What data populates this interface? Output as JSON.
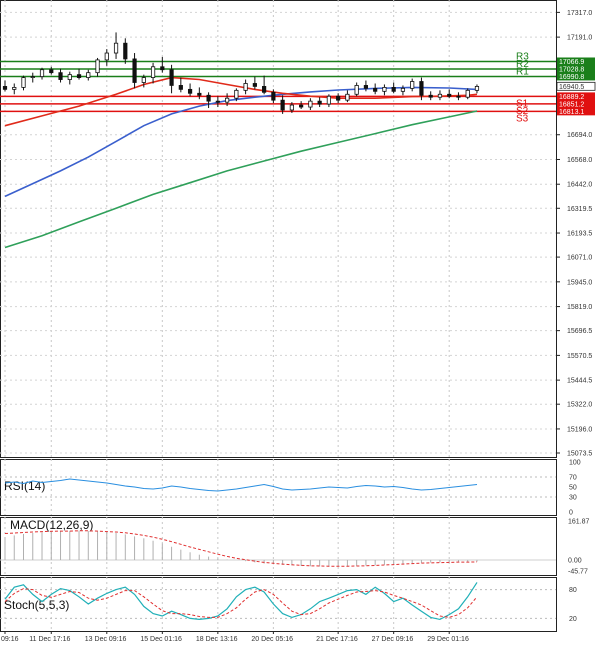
{
  "chart_data": {
    "type": "candlestick",
    "title": "",
    "price_axis": {
      "min": 15073.5,
      "max": 17380,
      "ticks": [
        17317.0,
        17191.0,
        16694.0,
        16568.0,
        16442.0,
        16319.5,
        16193.5,
        16071.0,
        15945.0,
        15819.0,
        15696.5,
        15570.5,
        15444.5,
        15322.0,
        15196.0,
        15073.5
      ],
      "current_price": 16940.5
    },
    "x_axis": {
      "count": 60,
      "tick_labels": [
        {
          "i": 0,
          "label": "09:16"
        },
        {
          "i": 5,
          "label": "11 Dec 17:16"
        },
        {
          "i": 11,
          "label": "13 Dec 09:16"
        },
        {
          "i": 17,
          "label": "15 Dec 01:16"
        },
        {
          "i": 23,
          "label": "18 Dec 13:16"
        },
        {
          "i": 29,
          "label": "20 Dec 05:16"
        },
        {
          "i": 36,
          "label": "21 Dec 17:16"
        },
        {
          "i": 42,
          "label": "27 Dec 09:16"
        },
        {
          "i": 48,
          "label": "29 Dec 01:16"
        }
      ]
    },
    "levels": [
      {
        "name": "R3",
        "value": 17066.9,
        "color": "#1a7f1a"
      },
      {
        "name": "R2",
        "value": 17028.8,
        "color": "#1a7f1a"
      },
      {
        "name": "R1",
        "value": 16990.8,
        "color": "#1a7f1a"
      },
      {
        "name": "S1",
        "value": 16889.2,
        "color": "#e01010"
      },
      {
        "name": "S2",
        "value": 16851.2,
        "color": "#e01010"
      },
      {
        "name": "S3",
        "value": 16813.1,
        "color": "#e01010"
      }
    ],
    "candles": [
      [
        16940,
        16970,
        16915,
        16925
      ],
      [
        16925,
        16955,
        16900,
        16935
      ],
      [
        16935,
        16995,
        16920,
        16985
      ],
      [
        16985,
        17010,
        16960,
        16990
      ],
      [
        16990,
        17035,
        16975,
        17025
      ],
      [
        17025,
        17040,
        17000,
        17010
      ],
      [
        17010,
        17030,
        16960,
        16975
      ],
      [
        16975,
        17015,
        16950,
        17000
      ],
      [
        17000,
        17030,
        16975,
        16985
      ],
      [
        16985,
        17025,
        16970,
        17010
      ],
      [
        17010,
        17085,
        16990,
        17075
      ],
      [
        17075,
        17130,
        17045,
        17110
      ],
      [
        17110,
        17215,
        17080,
        17160
      ],
      [
        17160,
        17185,
        17055,
        17080
      ],
      [
        17080,
        17110,
        16930,
        16960
      ],
      [
        16960,
        17000,
        16935,
        16985
      ],
      [
        16985,
        17060,
        16955,
        17040
      ],
      [
        17040,
        17090,
        17010,
        17025
      ],
      [
        17025,
        17050,
        16905,
        16945
      ],
      [
        16945,
        16985,
        16910,
        16925
      ],
      [
        16925,
        16955,
        16890,
        16905
      ],
      [
        16905,
        16935,
        16875,
        16895
      ],
      [
        16895,
        16910,
        16830,
        16865
      ],
      [
        16865,
        16890,
        16835,
        16860
      ],
      [
        16860,
        16905,
        16840,
        16880
      ],
      [
        16880,
        16930,
        16865,
        16920
      ],
      [
        16920,
        16975,
        16900,
        16955
      ],
      [
        16955,
        16990,
        16925,
        16940
      ],
      [
        16940,
        16995,
        16900,
        16910
      ],
      [
        16910,
        16925,
        16855,
        16870
      ],
      [
        16870,
        16895,
        16800,
        16820
      ],
      [
        16820,
        16860,
        16805,
        16845
      ],
      [
        16845,
        16865,
        16825,
        16835
      ],
      [
        16835,
        16880,
        16820,
        16865
      ],
      [
        16865,
        16885,
        16835,
        16850
      ],
      [
        16850,
        16900,
        16835,
        16890
      ],
      [
        16890,
        16905,
        16855,
        16870
      ],
      [
        16870,
        16920,
        16860,
        16900
      ],
      [
        16900,
        16960,
        16890,
        16945
      ],
      [
        16945,
        16970,
        16915,
        16930
      ],
      [
        16930,
        16955,
        16900,
        16915
      ],
      [
        16915,
        16950,
        16895,
        16935
      ],
      [
        16935,
        16960,
        16905,
        16915
      ],
      [
        16915,
        16945,
        16895,
        16930
      ],
      [
        16930,
        16980,
        16915,
        16965
      ],
      [
        16965,
        16985,
        16870,
        16895
      ],
      [
        16895,
        16915,
        16870,
        16885
      ],
      [
        16885,
        16920,
        16870,
        16900
      ],
      [
        16900,
        16925,
        16880,
        16890
      ],
      [
        16890,
        16910,
        16870,
        16885
      ],
      [
        16885,
        16930,
        16875,
        16920
      ],
      [
        16920,
        16950,
        16905,
        16940
      ]
    ],
    "ma_red": [
      [
        0,
        16740
      ],
      [
        4,
        16790
      ],
      [
        8,
        16840
      ],
      [
        12,
        16900
      ],
      [
        15,
        16950
      ],
      [
        18,
        16985
      ],
      [
        21,
        16975
      ],
      [
        24,
        16950
      ],
      [
        27,
        16925
      ],
      [
        30,
        16905
      ],
      [
        33,
        16890
      ],
      [
        36,
        16880
      ],
      [
        40,
        16880
      ],
      [
        44,
        16888
      ],
      [
        47,
        16890
      ],
      [
        50,
        16895
      ],
      [
        51,
        16900
      ]
    ],
    "ma_blue": [
      [
        0,
        16380
      ],
      [
        3,
        16445
      ],
      [
        6,
        16510
      ],
      [
        9,
        16580
      ],
      [
        12,
        16660
      ],
      [
        15,
        16740
      ],
      [
        18,
        16800
      ],
      [
        21,
        16840
      ],
      [
        24,
        16868
      ],
      [
        27,
        16885
      ],
      [
        30,
        16900
      ],
      [
        33,
        16912
      ],
      [
        36,
        16922
      ],
      [
        40,
        16930
      ],
      [
        44,
        16935
      ],
      [
        48,
        16932
      ],
      [
        51,
        16925
      ]
    ],
    "ma_green": [
      [
        0,
        16120
      ],
      [
        4,
        16180
      ],
      [
        8,
        16250
      ],
      [
        12,
        16320
      ],
      [
        16,
        16390
      ],
      [
        20,
        16450
      ],
      [
        24,
        16510
      ],
      [
        28,
        16560
      ],
      [
        32,
        16610
      ],
      [
        36,
        16655
      ],
      [
        40,
        16700
      ],
      [
        44,
        16745
      ],
      [
        48,
        16785
      ],
      [
        51,
        16815
      ]
    ],
    "indicators": {
      "rsi": {
        "label": "RSI(14)",
        "ticks": [
          "100",
          "70",
          "50",
          "30",
          "0"
        ],
        "values": [
          58,
          60,
          57,
          62,
          59,
          61,
          63,
          66,
          64,
          62,
          60,
          58,
          55,
          52,
          50,
          47,
          46,
          48,
          52,
          50,
          47,
          45,
          43,
          42,
          44,
          46,
          49,
          52,
          55,
          51,
          46,
          44,
          45,
          46,
          48,
          50,
          49,
          48,
          51,
          53,
          52,
          50,
          51,
          49,
          46,
          44,
          45,
          47,
          49,
          51,
          53,
          55
        ]
      },
      "macd": {
        "label": "MACD(12,26,9)",
        "ticks": [
          "161.87",
          "0.00",
          "-45.77"
        ],
        "hist": [
          95,
          102,
          108,
          112,
          115,
          118,
          120,
          121,
          122,
          120,
          118,
          116,
          112,
          106,
          98,
          90,
          80,
          68,
          55,
          43,
          32,
          22,
          14,
          6,
          2,
          0,
          -5,
          -10,
          -15,
          -18,
          -20,
          -22,
          -25,
          -26,
          -27,
          -27,
          -26,
          -25,
          -24,
          -23,
          -22,
          -20,
          -18,
          -16,
          -14,
          -12,
          -11,
          -10,
          -9,
          -8,
          -8,
          -7
        ],
        "signal": [
          110,
          112,
          114,
          116,
          118,
          119,
          120,
          120,
          121,
          121,
          120,
          118,
          116,
          113,
          108,
          102,
          95,
          86,
          76,
          65,
          54,
          44,
          34,
          24,
          15,
          7,
          1,
          -5,
          -10,
          -14,
          -17,
          -20,
          -22,
          -24,
          -25,
          -26,
          -26,
          -26,
          -25,
          -24,
          -23,
          -21,
          -19,
          -17,
          -15,
          -13,
          -12,
          -11,
          -10,
          -9,
          -9,
          -8
        ]
      },
      "stoch": {
        "label": "Stoch(5,5,3)",
        "ticks": [
          "80",
          "20"
        ],
        "k": [
          60,
          85,
          90,
          70,
          55,
          70,
          82,
          78,
          65,
          50,
          62,
          72,
          80,
          85,
          70,
          45,
          30,
          25,
          35,
          28,
          20,
          18,
          20,
          25,
          40,
          65,
          80,
          85,
          75,
          50,
          30,
          22,
          28,
          40,
          55,
          62,
          70,
          78,
          80,
          70,
          85,
          72,
          55,
          62,
          48,
          35,
          22,
          18,
          28,
          40,
          65,
          95
        ],
        "d": [
          55,
          72,
          82,
          80,
          68,
          64,
          70,
          76,
          74,
          62,
          58,
          62,
          70,
          78,
          78,
          65,
          50,
          36,
          30,
          30,
          28,
          24,
          22,
          22,
          30,
          42,
          60,
          75,
          80,
          70,
          52,
          35,
          28,
          30,
          40,
          52,
          60,
          68,
          75,
          76,
          78,
          75,
          68,
          62,
          55,
          48,
          36,
          25,
          22,
          28,
          42,
          65
        ]
      }
    }
  }
}
